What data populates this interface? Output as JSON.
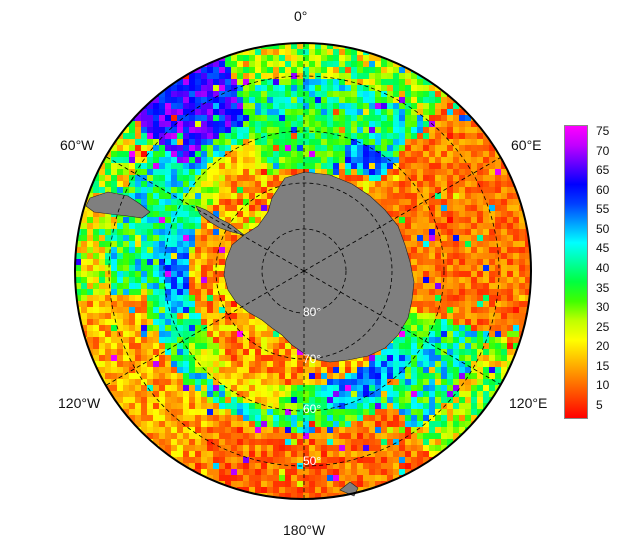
{
  "map": {
    "projection": "south-polar-stereographic",
    "lon_labels": {
      "top": "0°",
      "upper_left": "60°W",
      "upper_right": "60°E",
      "lower_left": "120°W",
      "lower_right": "120°E",
      "bottom": "180°W"
    },
    "lat_labels": [
      "80°",
      "70°",
      "60°",
      "50°"
    ],
    "land_color": "#7f7f7f",
    "grid_style": "dashed black",
    "colorbar": {
      "ticks": [
        "75",
        "70",
        "65",
        "60",
        "55",
        "50",
        "45",
        "40",
        "35",
        "30",
        "25",
        "20",
        "15",
        "10",
        "5"
      ],
      "range": [
        1,
        77
      ],
      "colormap": "rainbow (red low → magenta high)",
      "stops": [
        "#ff0000",
        "#ff4000",
        "#ff8000",
        "#ffc000",
        "#ffff00",
        "#c0ff00",
        "#40ff00",
        "#00ff40",
        "#00ffa0",
        "#00ffff",
        "#00a0ff",
        "#0040ff",
        "#0000ff",
        "#6000ff",
        "#c000ff",
        "#ff00ff"
      ]
    }
  }
}
